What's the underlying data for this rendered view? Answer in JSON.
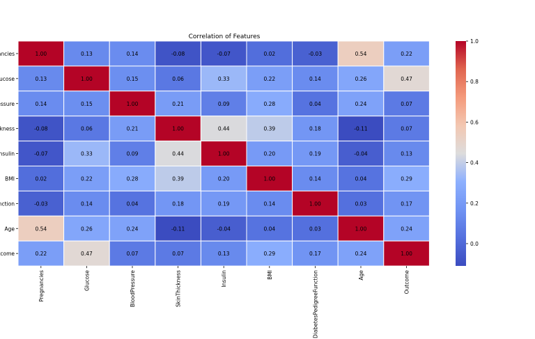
{
  "chart_data": {
    "type": "heatmap",
    "title": "Correlation of Features",
    "row_labels": [
      "Pregnancies",
      "Glucose",
      "BloodPressure",
      "SkinThickness",
      "Insulin",
      "BMI",
      "DiabetesPedigreeFunction",
      "Age",
      "Outcome"
    ],
    "visible_row_labels": [
      "ancies",
      "lucose",
      "essure",
      "ckness",
      "Insulin",
      "BMI",
      "nction",
      "Age",
      "utcome"
    ],
    "column_labels": [
      "Pregnancies",
      "Glucose",
      "BloodPressure",
      "SkinThickness",
      "Insulin",
      "BMI",
      "DiabetesPedigreeFunction",
      "Age",
      "Outcome"
    ],
    "values": [
      [
        1.0,
        0.13,
        0.14,
        -0.08,
        -0.07,
        0.02,
        -0.03,
        0.54,
        0.22
      ],
      [
        0.13,
        1.0,
        0.15,
        0.06,
        0.33,
        0.22,
        0.14,
        0.26,
        0.47
      ],
      [
        0.14,
        0.15,
        1.0,
        0.21,
        0.09,
        0.28,
        0.04,
        0.24,
        0.07
      ],
      [
        -0.08,
        0.06,
        0.21,
        1.0,
        0.44,
        0.39,
        0.18,
        -0.11,
        0.07
      ],
      [
        -0.07,
        0.33,
        0.09,
        0.44,
        1.0,
        0.2,
        0.19,
        -0.04,
        0.13
      ],
      [
        0.02,
        0.22,
        0.28,
        0.39,
        0.2,
        1.0,
        0.14,
        0.04,
        0.29
      ],
      [
        -0.03,
        0.14,
        0.04,
        0.18,
        0.19,
        0.14,
        1.0,
        0.03,
        0.17
      ],
      [
        0.54,
        0.26,
        0.24,
        -0.11,
        -0.04,
        0.04,
        0.03,
        1.0,
        0.24
      ],
      [
        0.22,
        0.47,
        0.07,
        0.07,
        0.13,
        0.29,
        0.17,
        0.24,
        1.0
      ]
    ],
    "value_format": "2 decimals",
    "colormap": "coolwarm",
    "colorbar": {
      "range": [
        -0.11,
        1.0
      ],
      "ticks": [
        0.0,
        0.2,
        0.4,
        0.6,
        0.8,
        1.0
      ],
      "tick_labels": [
        "0.0",
        "0.2",
        "0.4",
        "0.6",
        "0.8",
        "1.0"
      ]
    },
    "grid": true,
    "legend": "colorbar-right"
  }
}
